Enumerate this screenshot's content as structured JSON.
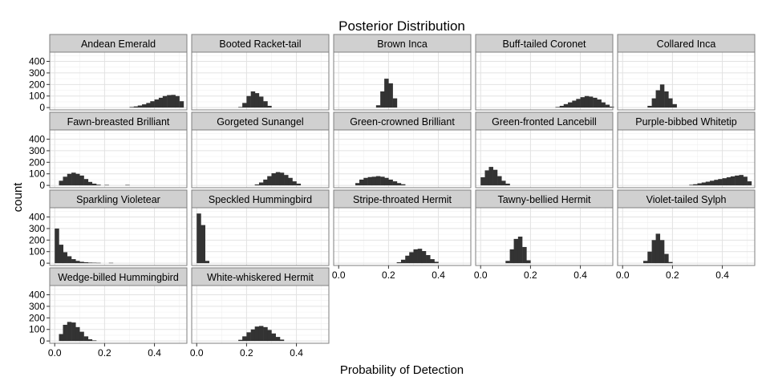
{
  "chart_data": {
    "type": "bar",
    "title": "Posterior Distribution",
    "xlabel": "Probability of Detection",
    "ylabel": "count",
    "xlim": [
      -0.02,
      0.53
    ],
    "ylim": [
      -20,
      480
    ],
    "x_ticks": [
      0.0,
      0.2,
      0.4
    ],
    "x_tick_labels": [
      "0.0",
      "0.2",
      "0.4"
    ],
    "y_ticks": [
      0,
      100,
      200,
      300,
      400
    ],
    "y_tick_labels": [
      "0",
      "100",
      "200",
      "300",
      "400"
    ],
    "grid": true,
    "bin_width": 0.0167,
    "bar_color": "#333333",
    "panel_bg": "#ffffff",
    "strip_bg": "#d0d0d0",
    "panels": [
      {
        "name": "Andean Emerald",
        "bins": [
          [
            0.3,
            5
          ],
          [
            0.317,
            10
          ],
          [
            0.333,
            18
          ],
          [
            0.35,
            28
          ],
          [
            0.367,
            40
          ],
          [
            0.383,
            55
          ],
          [
            0.4,
            70
          ],
          [
            0.417,
            85
          ],
          [
            0.433,
            100
          ],
          [
            0.45,
            108
          ],
          [
            0.467,
            110
          ],
          [
            0.483,
            100
          ],
          [
            0.5,
            55
          ]
        ]
      },
      {
        "name": "Booted Racket-tail",
        "bins": [
          [
            0.167,
            5
          ],
          [
            0.183,
            40
          ],
          [
            0.2,
            100
          ],
          [
            0.217,
            140
          ],
          [
            0.233,
            125
          ],
          [
            0.25,
            95
          ],
          [
            0.267,
            55
          ],
          [
            0.283,
            15
          ]
        ]
      },
      {
        "name": "Brown Inca",
        "bins": [
          [
            0.15,
            20
          ],
          [
            0.167,
            140
          ],
          [
            0.183,
            250
          ],
          [
            0.2,
            210
          ],
          [
            0.217,
            80
          ]
        ]
      },
      {
        "name": "Buff-tailed Coronet",
        "bins": [
          [
            0.3,
            5
          ],
          [
            0.317,
            15
          ],
          [
            0.333,
            30
          ],
          [
            0.35,
            45
          ],
          [
            0.367,
            60
          ],
          [
            0.383,
            75
          ],
          [
            0.4,
            90
          ],
          [
            0.417,
            100
          ],
          [
            0.433,
            95
          ],
          [
            0.45,
            85
          ],
          [
            0.467,
            70
          ],
          [
            0.483,
            45
          ],
          [
            0.5,
            25
          ],
          [
            0.517,
            8
          ]
        ]
      },
      {
        "name": "Collared Inca",
        "bins": [
          [
            0.1,
            15
          ],
          [
            0.117,
            80
          ],
          [
            0.133,
            150
          ],
          [
            0.15,
            200
          ],
          [
            0.167,
            140
          ],
          [
            0.183,
            80
          ],
          [
            0.2,
            30
          ]
        ]
      },
      {
        "name": "Fawn-breasted Brilliant",
        "bins": [
          [
            0.017,
            40
          ],
          [
            0.033,
            75
          ],
          [
            0.05,
            100
          ],
          [
            0.067,
            110
          ],
          [
            0.083,
            100
          ],
          [
            0.1,
            85
          ],
          [
            0.117,
            55
          ],
          [
            0.133,
            30
          ],
          [
            0.15,
            15
          ],
          [
            0.167,
            6
          ],
          [
            0.2,
            4
          ],
          [
            0.283,
            4
          ]
        ]
      },
      {
        "name": "Gorgeted Sunangel",
        "bins": [
          [
            0.233,
            8
          ],
          [
            0.25,
            25
          ],
          [
            0.267,
            50
          ],
          [
            0.283,
            80
          ],
          [
            0.3,
            105
          ],
          [
            0.317,
            115
          ],
          [
            0.333,
            110
          ],
          [
            0.35,
            90
          ],
          [
            0.367,
            65
          ],
          [
            0.383,
            35
          ],
          [
            0.4,
            15
          ]
        ]
      },
      {
        "name": "Green-crowned Brilliant",
        "bins": [
          [
            0.067,
            20
          ],
          [
            0.083,
            50
          ],
          [
            0.1,
            65
          ],
          [
            0.117,
            72
          ],
          [
            0.133,
            75
          ],
          [
            0.15,
            80
          ],
          [
            0.167,
            75
          ],
          [
            0.183,
            65
          ],
          [
            0.2,
            50
          ],
          [
            0.217,
            35
          ],
          [
            0.233,
            20
          ],
          [
            0.25,
            10
          ]
        ]
      },
      {
        "name": "Green-fronted Lancebill",
        "bins": [
          [
            0.0,
            70
          ],
          [
            0.017,
            130
          ],
          [
            0.033,
            160
          ],
          [
            0.05,
            135
          ],
          [
            0.067,
            80
          ],
          [
            0.083,
            40
          ],
          [
            0.1,
            15
          ]
        ]
      },
      {
        "name": "Purple-bibbed Whitetip",
        "bins": [
          [
            0.267,
            5
          ],
          [
            0.283,
            10
          ],
          [
            0.3,
            18
          ],
          [
            0.317,
            25
          ],
          [
            0.333,
            32
          ],
          [
            0.35,
            40
          ],
          [
            0.367,
            48
          ],
          [
            0.383,
            55
          ],
          [
            0.4,
            62
          ],
          [
            0.417,
            70
          ],
          [
            0.433,
            78
          ],
          [
            0.45,
            85
          ],
          [
            0.467,
            90
          ],
          [
            0.483,
            75
          ],
          [
            0.5,
            35
          ]
        ]
      },
      {
        "name": "Sparkling Violetear",
        "bins": [
          [
            0.0,
            300
          ],
          [
            0.017,
            160
          ],
          [
            0.033,
            95
          ],
          [
            0.05,
            60
          ],
          [
            0.067,
            35
          ],
          [
            0.083,
            20
          ],
          [
            0.1,
            12
          ],
          [
            0.117,
            8
          ],
          [
            0.133,
            5
          ],
          [
            0.15,
            4
          ],
          [
            0.167,
            3
          ],
          [
            0.217,
            3
          ]
        ]
      },
      {
        "name": "Speckled Hummingbird",
        "bins": [
          [
            0.0,
            430
          ],
          [
            0.017,
            330
          ],
          [
            0.033,
            20
          ]
        ]
      },
      {
        "name": "Stripe-throated Hermit",
        "bins": [
          [
            0.233,
            8
          ],
          [
            0.25,
            30
          ],
          [
            0.267,
            65
          ],
          [
            0.283,
            95
          ],
          [
            0.3,
            120
          ],
          [
            0.317,
            125
          ],
          [
            0.333,
            105
          ],
          [
            0.35,
            70
          ],
          [
            0.367,
            35
          ],
          [
            0.383,
            12
          ]
        ]
      },
      {
        "name": "Tawny-bellied Hermit",
        "bins": [
          [
            0.1,
            20
          ],
          [
            0.117,
            120
          ],
          [
            0.133,
            210
          ],
          [
            0.15,
            230
          ],
          [
            0.167,
            140
          ],
          [
            0.183,
            25
          ]
        ]
      },
      {
        "name": "Violet-tailed Sylph",
        "bins": [
          [
            0.083,
            20
          ],
          [
            0.1,
            100
          ],
          [
            0.117,
            200
          ],
          [
            0.133,
            255
          ],
          [
            0.15,
            200
          ],
          [
            0.167,
            80
          ],
          [
            0.183,
            10
          ]
        ]
      },
      {
        "name": "Wedge-billed Hummingbird",
        "bins": [
          [
            0.017,
            60
          ],
          [
            0.033,
            140
          ],
          [
            0.05,
            165
          ],
          [
            0.067,
            160
          ],
          [
            0.083,
            120
          ],
          [
            0.1,
            80
          ],
          [
            0.117,
            40
          ],
          [
            0.133,
            15
          ],
          [
            0.15,
            5
          ]
        ]
      },
      {
        "name": "White-whiskered Hermit",
        "bins": [
          [
            0.167,
            10
          ],
          [
            0.183,
            40
          ],
          [
            0.2,
            75
          ],
          [
            0.217,
            100
          ],
          [
            0.233,
            125
          ],
          [
            0.25,
            130
          ],
          [
            0.267,
            120
          ],
          [
            0.283,
            95
          ],
          [
            0.3,
            65
          ],
          [
            0.317,
            35
          ],
          [
            0.333,
            12
          ]
        ]
      }
    ]
  }
}
